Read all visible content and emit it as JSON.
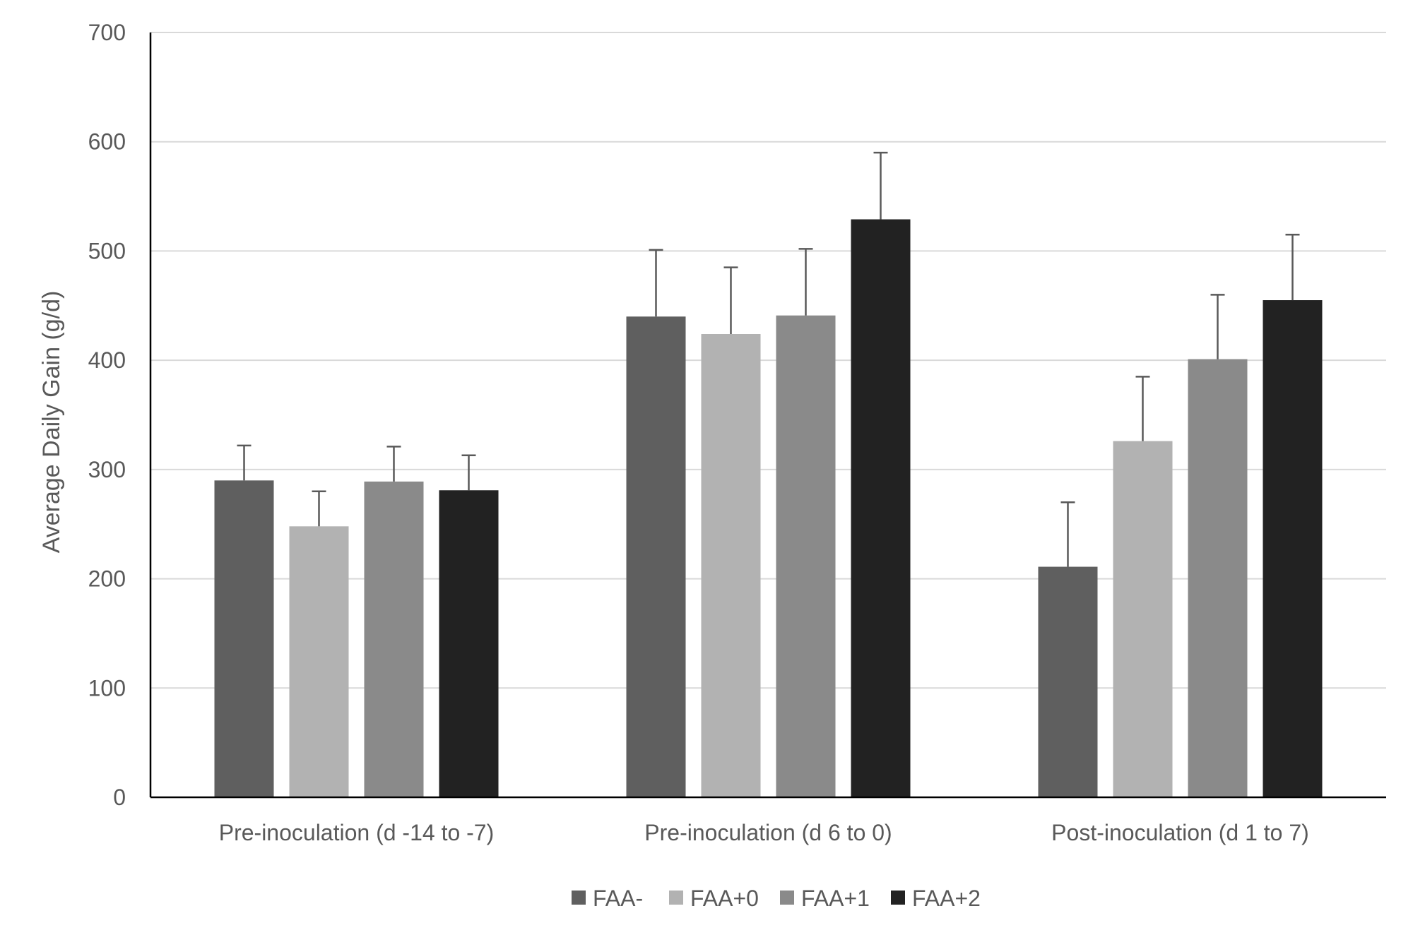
{
  "chart_data": {
    "type": "bar",
    "title": "",
    "xlabel": "",
    "ylabel": "Average Daily Gain (g/d)",
    "ylim": [
      0,
      700
    ],
    "yticks": [
      0,
      100,
      200,
      300,
      400,
      500,
      600,
      700
    ],
    "ytick_labels": [
      "0",
      "100",
      "200",
      "300",
      "400",
      "500",
      "600",
      "700"
    ],
    "grid": true,
    "legend_position": "bottom",
    "categories": [
      "Pre-inoculation (d -14 to -7)",
      "Pre-inoculation (d 6 to 0)",
      "Post-inoculation (d 1 to 7)"
    ],
    "series": [
      {
        "name": "FAA-",
        "color": "#5f5f5f",
        "values": [
          290,
          440,
          211
        ],
        "error": [
          32,
          61,
          59
        ]
      },
      {
        "name": "FAA+0",
        "color": "#b2b2b2",
        "values": [
          248,
          424,
          326
        ],
        "error": [
          32,
          61,
          59
        ]
      },
      {
        "name": "FAA+1",
        "color": "#8a8a8a",
        "values": [
          289,
          441,
          401
        ],
        "error": [
          32,
          61,
          59
        ]
      },
      {
        "name": "FAA+2",
        "color": "#222222",
        "values": [
          281,
          529,
          455
        ],
        "error": [
          32,
          61,
          60
        ]
      }
    ]
  }
}
